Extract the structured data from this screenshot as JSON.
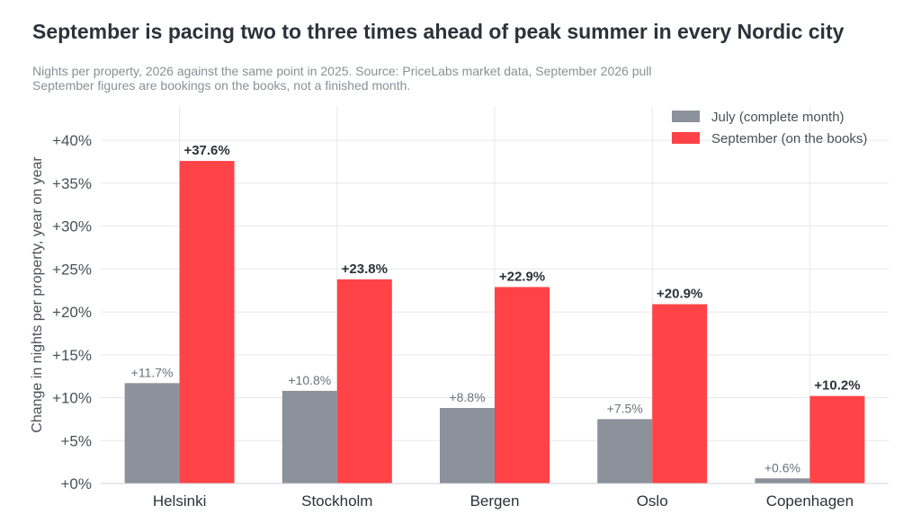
{
  "chart_data": {
    "type": "bar",
    "title": "September is pacing two to three times ahead of peak summer in every Nordic city",
    "subtitle": [
      "Nights per property, 2026 against the same point in 2025. Source: PriceLabs market data, September 2026 pull",
      "September figures are bookings on the books, not a finished month."
    ],
    "xlabel": "",
    "ylabel": "Change in nights per property, year on year",
    "categories": [
      "Helsinki",
      "Stockholm",
      "Bergen",
      "Oslo",
      "Copenhagen"
    ],
    "series": [
      {
        "name": "July (complete month)",
        "color": "#8b929b",
        "values": [
          11.7,
          10.8,
          8.8,
          7.5,
          0.6
        ],
        "labels": [
          "+11.7%",
          "+10.8%",
          "+8.8%",
          "+7.5%",
          "+0.6%"
        ]
      },
      {
        "name": "September (on the books)",
        "color": "#ff4347",
        "values": [
          37.6,
          23.8,
          22.9,
          20.9,
          10.2
        ],
        "labels": [
          "+37.6%",
          "+23.8%",
          "+22.9%",
          "+20.9%",
          "+10.2%"
        ]
      }
    ],
    "ylim": [
      0,
      44
    ],
    "yticks": [
      0,
      5,
      10,
      15,
      20,
      25,
      30,
      35,
      40
    ],
    "ytick_labels": [
      "+0%",
      "+5%",
      "+10%",
      "+15%",
      "+20%",
      "+25%",
      "+30%",
      "+35%",
      "+40%"
    ],
    "grid": true,
    "legend_position": "top-right"
  }
}
